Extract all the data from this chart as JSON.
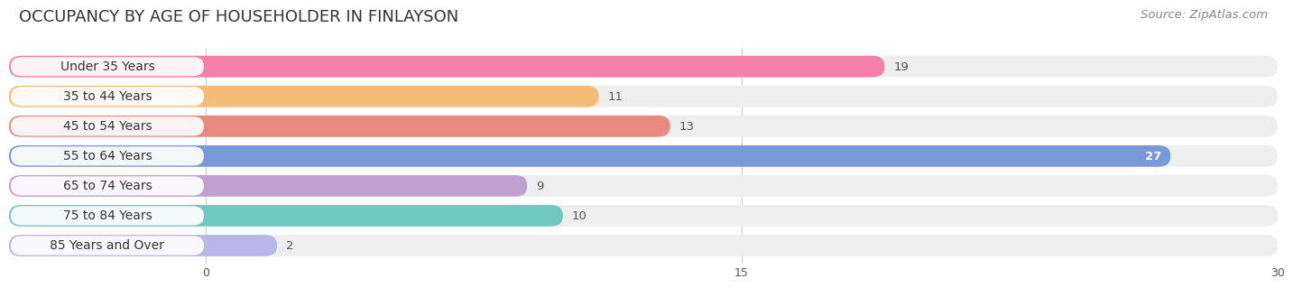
{
  "title": "OCCUPANCY BY AGE OF HOUSEHOLDER IN FINLAYSON",
  "source": "Source: ZipAtlas.com",
  "categories": [
    "Under 35 Years",
    "35 to 44 Years",
    "45 to 54 Years",
    "55 to 64 Years",
    "65 to 74 Years",
    "75 to 84 Years",
    "85 Years and Over"
  ],
  "values": [
    19,
    11,
    13,
    27,
    9,
    10,
    2
  ],
  "bar_colors": [
    "#F47FA8",
    "#F5BC78",
    "#E88A80",
    "#7898D8",
    "#C0A0D0",
    "#70C8C0",
    "#B8B8E8"
  ],
  "bar_bg_colors": [
    "#EEEEF2",
    "#EEEEF2",
    "#EEEEF2",
    "#EEEEF2",
    "#EEEEF2",
    "#EEEEF2",
    "#EEEEF2"
  ],
  "xlim": [
    0,
    30
  ],
  "xticks": [
    0,
    15,
    30
  ],
  "title_fontsize": 13,
  "source_fontsize": 9.5,
  "label_fontsize": 10,
  "value_fontsize": 9.5,
  "background_color": "#ffffff",
  "row_bg_color": "#EEEEEE",
  "white_label_bg": "#ffffff",
  "grid_color": "#cccccc"
}
